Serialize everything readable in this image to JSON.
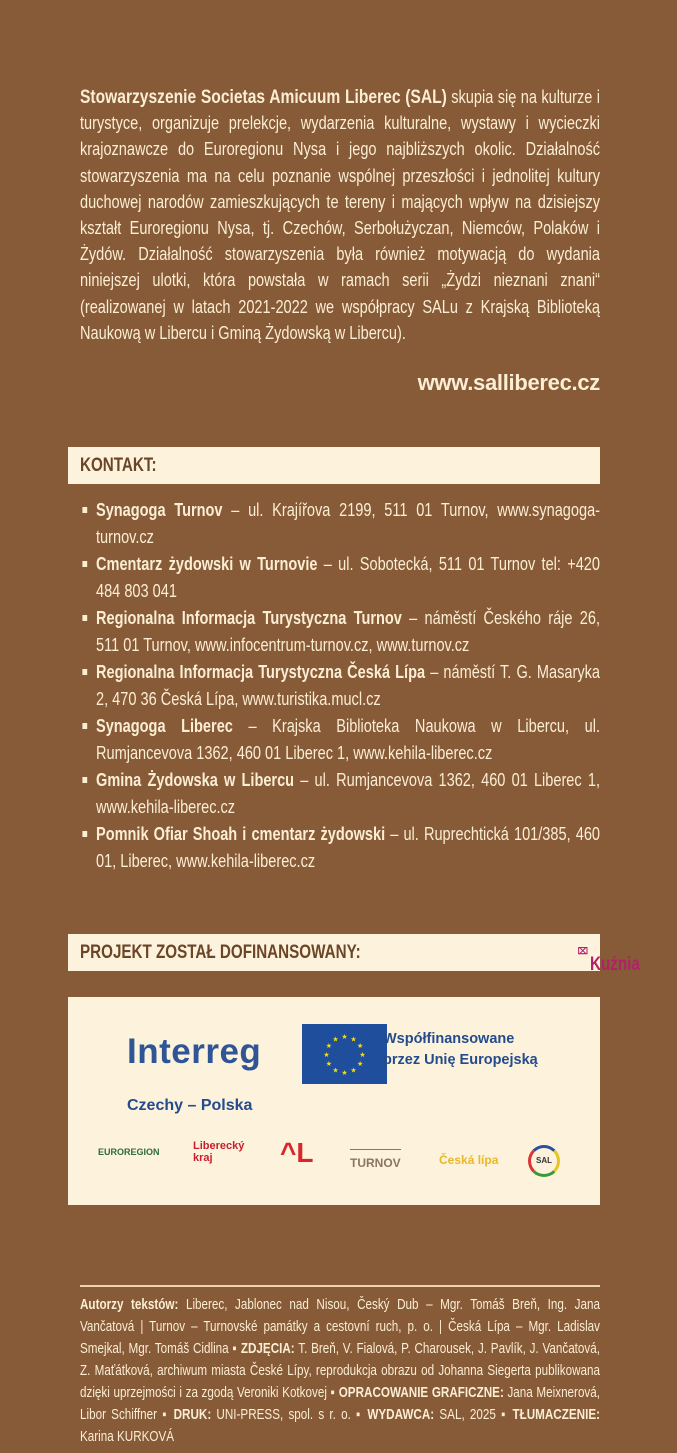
{
  "intro": {
    "lead": "Stowarzyszenie Societas Amicuum Liberec (SAL)",
    "text": " skupia się na kulturze i turystyce, organizuje prelekcje, wydarzenia kulturalne, wystawy i wycieczki krajoznawcze do Euroregionu Nysa i jego najbliższych okolic. Działalność stowarzyszenia ma na celu poznanie wspólnej przeszłości i jednolitej kultury duchowej narodów zamieszkujących te tereny i mających wpływ na dzisiejszy kształt Euroregionu Nysa, tj. Czechów, Serbołużyczan, Niemców, Polaków i Żydów. Działalność stowarzyszenia była również motywacją do wydania niniejszej ulotki, która powstała w ramach serii „Żydzi nieznani znani“ (realizowanej w latach 2021-2022 we współpracy SALu z Krajską Biblioteką Naukową w Libercu i Gminą Żydowską w Libercu).",
    "url": "www.salliberec.cz"
  },
  "kontakt": {
    "heading": "KONTAKT:",
    "items": [
      {
        "name": "Synagoga Turnov",
        "detail": " – ul. Krajířova 2199, 511 01 Turnov, www.synagoga-turnov.cz"
      },
      {
        "name": "Cmentarz żydowski w Turnovie",
        "detail": " – ul. Sobotecká, 511 01 Turnov tel: +420 484 803 041"
      },
      {
        "name": "Regionalna Informacja Turystyczna Turnov",
        "detail": " – náměstí Českého ráje 26, 511 01 Turnov, www.infocentrum-turnov.cz, www.turnov.cz"
      },
      {
        "name": "Regionalna Informacja Turystyczna Česká Lípa",
        "detail": " – náměstí T. G. Masaryka 2, 470 36 Česká Lípa, www.turistika.mucl.cz"
      },
      {
        "name": "Synagoga Liberec",
        "detail": " – Krajska Biblioteka Naukowa w Libercu, ul. Rumjancevova 1362, 460 01 Liberec 1, www.kehila-liberec.cz"
      },
      {
        "name": "Gmina Żydowska w Libercu",
        "detail": " – ul. Rumjancevova 1362, 460 01 Liberec 1, www.kehila-liberec.cz"
      },
      {
        "name": "Pomnik Ofiar Shoah i cmentarz żydowski",
        "detail": " – ul. Ruprechtická 101/385, 460 01, Liberec, www.kehila-liberec.cz"
      }
    ]
  },
  "projekt": {
    "heading": "PROJEKT ZOSTAŁ DOFINANSOWANY:",
    "kuznia_logo": "Kuźnia",
    "interreg": "Interreg",
    "eu_line1": "Współfinansowane",
    "eu_line2": "przez Unię Europejską",
    "program": "Czechy – Polska",
    "partner_logos": [
      "EUROREGION",
      "Liberecký kraj",
      "L",
      "TURNOV",
      "Česká lípa",
      "SAL"
    ]
  },
  "footer": {
    "segments": [
      {
        "b": "Autorzy tekstów:",
        "t": " Liberec, Jablonec nad Nisou, Český Dub – Mgr. Tomáš Breň, Ing. Jana Vančatová | Turnov – Turnovské památky a cestovní ruch, p. o. | Česká Lípa – Mgr. Ladislav Smejkal, Mgr. Tomáš Cidlina ▪ "
      },
      {
        "b": "ZDJĘCIA:",
        "t": " T. Breň, V. Fialová, P. Charousek, J. Pavlík, J. Vančatová, Z. Maťátková, archiwum miasta České Lípy, reprodukcja obrazu od Johanna Siegerta publikowana dzięki uprzejmości i za zgodą Veroniki Kotkovej ▪ "
      },
      {
        "b": "OPRACOWANIE GRAFICZNE:",
        "t": " Jana Meixnerová, Libor Schiffner ▪ "
      },
      {
        "b": "DRUK:",
        "t": " UNI-PRESS, spol. s r. o. ▪ "
      },
      {
        "b": "WYDAWCA:",
        "t": " SAL, 2025 ▪ "
      },
      {
        "b": "TŁUMACZENIE:",
        "t": " Karina KURKOVÁ"
      }
    ]
  },
  "colors": {
    "background": "#875a38",
    "panel": "#fdf3dc",
    "text": "#fbeed3",
    "heading": "#6b4527",
    "eu_blue": "#1f4e9c"
  }
}
